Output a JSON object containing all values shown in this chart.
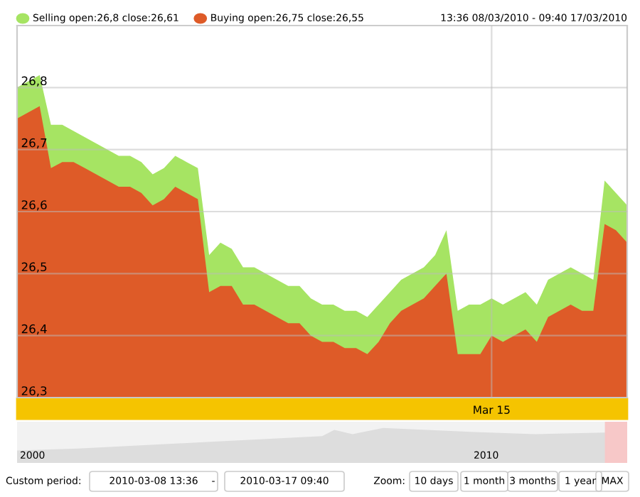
{
  "chart_data": {
    "type": "area",
    "categories": [
      null,
      null,
      null,
      null,
      null,
      null,
      null,
      null,
      null,
      null,
      null,
      null,
      null,
      null,
      null,
      null,
      null,
      null,
      null,
      null,
      null,
      null,
      null,
      null,
      null,
      null,
      null,
      null,
      null,
      null,
      null,
      null,
      null,
      null,
      null,
      null,
      null,
      null,
      null,
      null,
      null,
      null,
      "Mar 15",
      null,
      null,
      null,
      null,
      null,
      null,
      null,
      null,
      null,
      null,
      null,
      null
    ],
    "series": [
      {
        "name": "Selling open:26,8 close:26,61",
        "color": "#a6e463",
        "values": [
          26.8,
          26.81,
          26.82,
          26.74,
          26.74,
          26.73,
          26.72,
          26.71,
          26.7,
          26.69,
          26.69,
          26.68,
          26.66,
          26.67,
          26.69,
          26.68,
          26.67,
          26.53,
          26.55,
          26.54,
          26.51,
          26.51,
          26.5,
          26.49,
          26.48,
          26.48,
          26.46,
          26.45,
          26.45,
          26.44,
          26.44,
          26.43,
          26.45,
          26.47,
          26.49,
          26.5,
          26.51,
          26.53,
          26.57,
          26.44,
          26.45,
          26.45,
          26.46,
          26.45,
          26.46,
          26.47,
          26.45,
          26.49,
          26.5,
          26.51,
          26.5,
          26.49,
          26.65,
          26.63,
          26.61
        ]
      },
      {
        "name": "Buying open:26,75 close:26,55",
        "color": "#de5b28",
        "values": [
          26.75,
          26.76,
          26.77,
          26.67,
          26.68,
          26.68,
          26.67,
          26.66,
          26.65,
          26.64,
          26.64,
          26.63,
          26.61,
          26.62,
          26.64,
          26.63,
          26.62,
          26.47,
          26.48,
          26.48,
          26.45,
          26.45,
          26.44,
          26.43,
          26.42,
          26.42,
          26.4,
          26.39,
          26.39,
          26.38,
          26.38,
          26.37,
          26.39,
          26.42,
          26.44,
          26.45,
          26.46,
          26.48,
          26.5,
          26.37,
          26.37,
          26.37,
          26.4,
          26.39,
          26.4,
          26.41,
          26.39,
          26.43,
          26.44,
          26.45,
          26.44,
          26.44,
          26.58,
          26.57,
          26.55
        ]
      }
    ],
    "ylim": [
      26.3,
      26.9
    ],
    "yticks": [
      {
        "value": 26.3,
        "label": "26,3"
      },
      {
        "value": 26.4,
        "label": "26,4"
      },
      {
        "value": 26.5,
        "label": "26,5"
      },
      {
        "value": 26.6,
        "label": "26,6"
      },
      {
        "value": 26.7,
        "label": "26,7"
      },
      {
        "value": 26.8,
        "label": "26,8"
      }
    ],
    "grid": true,
    "legend": "top left",
    "annotations": [
      "13:36 08/03/2010 - 09:40 17/03/2010",
      "2000",
      "2010",
      "Custom period:",
      "2010-03-08 13:36",
      "-",
      "2010-03-17 09:40",
      "Zoom:",
      "10 days",
      "1 month",
      "3 months",
      "1 year",
      "MAX"
    ]
  }
}
